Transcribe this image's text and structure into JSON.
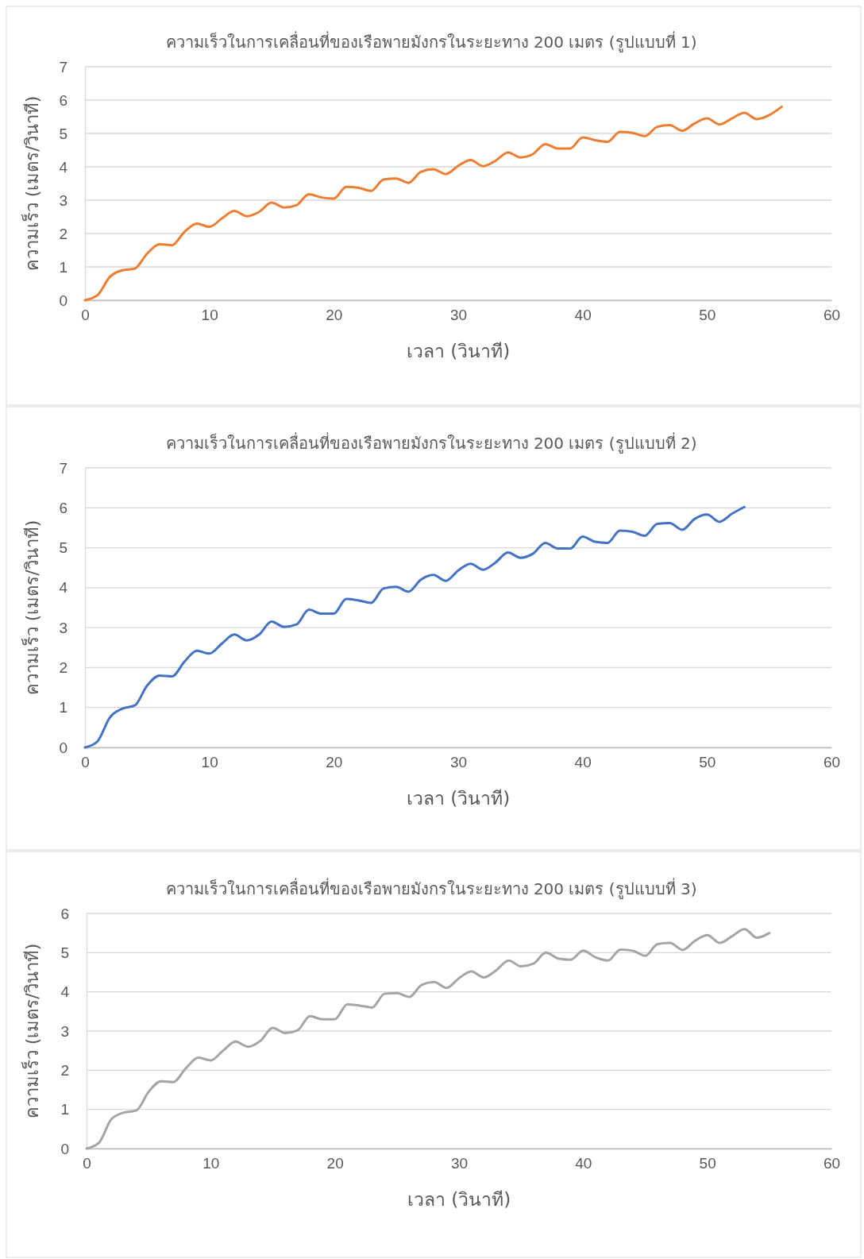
{
  "chart_data": [
    {
      "type": "line",
      "title": "ความเร็วในการเคลื่อนที่ของเรือพายมังกรในระยะทาง 200 เมตร (รูปแบบที่ 1)",
      "xlabel": "เวลา (วินาที)",
      "ylabel": "ความเร็ว (เมตร/วินาที)",
      "xlim": [
        0,
        60
      ],
      "xticks": [
        0,
        10,
        20,
        30,
        40,
        50,
        60
      ],
      "ylim": [
        0,
        7
      ],
      "yticks": [
        0,
        1,
        2,
        3,
        4,
        5,
        6,
        7
      ],
      "grid": "y",
      "x": [
        0,
        1,
        2,
        3,
        4,
        5,
        6,
        7,
        8,
        9,
        10,
        11,
        12,
        13,
        14,
        15,
        16,
        17,
        18,
        19,
        20,
        21,
        22,
        23,
        24,
        25,
        26,
        27,
        28,
        29,
        30,
        31,
        32,
        33,
        34,
        35,
        36,
        37,
        38,
        39,
        40,
        41,
        42,
        43,
        44,
        45,
        46,
        47,
        48,
        49,
        50,
        51,
        52,
        53,
        54,
        55,
        56
      ],
      "series": [
        {
          "color": "#ed7d31",
          "values": [
            0,
            0.15,
            0.7,
            0.9,
            0.95,
            1.4,
            1.68,
            1.65,
            2.05,
            2.3,
            2.2,
            2.45,
            2.68,
            2.52,
            2.65,
            2.93,
            2.78,
            2.85,
            3.18,
            3.08,
            3.05,
            3.4,
            3.37,
            3.28,
            3.62,
            3.65,
            3.52,
            3.85,
            3.93,
            3.78,
            4.03,
            4.2,
            4.02,
            4.18,
            4.43,
            4.28,
            4.38,
            4.68,
            4.55,
            4.55,
            4.88,
            4.8,
            4.75,
            5.05,
            5.02,
            4.92,
            5.2,
            5.25,
            5.08,
            5.3,
            5.45,
            5.27,
            5.45,
            5.62,
            5.43,
            5.55,
            5.8
          ]
        }
      ]
    },
    {
      "type": "line",
      "title": "ความเร็วในการเคลื่อนที่ของเรือพายมังกรในระยะทาง 200 เมตร (รูปแบบที่ 2)",
      "xlabel": "เวลา (วินาที)",
      "ylabel": "ความเร็ว (เมตร/วินาที)",
      "xlim": [
        0,
        60
      ],
      "xticks": [
        0,
        10,
        20,
        30,
        40,
        50,
        60
      ],
      "ylim": [
        0,
        7
      ],
      "yticks": [
        0,
        1,
        2,
        3,
        4,
        5,
        6,
        7
      ],
      "grid": "y",
      "x": [
        0,
        1,
        2,
        3,
        4,
        5,
        6,
        7,
        8,
        9,
        10,
        11,
        12,
        13,
        14,
        15,
        16,
        17,
        18,
        19,
        20,
        21,
        22,
        23,
        24,
        25,
        26,
        27,
        28,
        29,
        30,
        31,
        32,
        33,
        34,
        35,
        36,
        37,
        38,
        39,
        40,
        41,
        42,
        43,
        44,
        45,
        46,
        47,
        48,
        49,
        50,
        51,
        52,
        53
      ],
      "series": [
        {
          "color": "#4472c4",
          "values": [
            0,
            0.15,
            0.75,
            0.97,
            1.05,
            1.55,
            1.8,
            1.78,
            2.15,
            2.42,
            2.35,
            2.6,
            2.83,
            2.68,
            2.83,
            3.15,
            3.02,
            3.08,
            3.45,
            3.35,
            3.35,
            3.72,
            3.68,
            3.62,
            3.98,
            4.02,
            3.9,
            4.2,
            4.32,
            4.17,
            4.43,
            4.6,
            4.45,
            4.63,
            4.88,
            4.75,
            4.85,
            5.12,
            4.98,
            4.98,
            5.28,
            5.15,
            5.12,
            5.43,
            5.4,
            5.3,
            5.6,
            5.62,
            5.45,
            5.72,
            5.83,
            5.65,
            5.85,
            6.02
          ]
        }
      ]
    },
    {
      "type": "line",
      "title": "ความเร็วในการเคลื่อนที่ของเรือพายมังกรในระยะทาง 200 เมตร (รูปแบบที่ 3)",
      "xlabel": "เวลา (วินาที)",
      "ylabel": "ความเร็ว (เมตร/วินาที)",
      "xlim": [
        0,
        60
      ],
      "xticks": [
        0,
        10,
        20,
        30,
        40,
        50,
        60
      ],
      "ylim": [
        0,
        6
      ],
      "yticks": [
        0,
        1,
        2,
        3,
        4,
        5,
        6
      ],
      "grid": "y",
      "x": [
        0,
        1,
        2,
        3,
        4,
        5,
        6,
        7,
        8,
        9,
        10,
        11,
        12,
        13,
        14,
        15,
        16,
        17,
        18,
        19,
        20,
        21,
        22,
        23,
        24,
        25,
        26,
        27,
        28,
        29,
        30,
        31,
        32,
        33,
        34,
        35,
        36,
        37,
        38,
        39,
        40,
        41,
        42,
        43,
        44,
        45,
        46,
        47,
        48,
        49,
        50,
        51,
        52,
        53,
        54,
        55
      ],
      "series": [
        {
          "color": "#a5a5a5",
          "values": [
            0,
            0.15,
            0.75,
            0.92,
            0.97,
            1.45,
            1.72,
            1.7,
            2.05,
            2.32,
            2.25,
            2.5,
            2.73,
            2.6,
            2.75,
            3.08,
            2.95,
            3.02,
            3.38,
            3.3,
            3.3,
            3.68,
            3.65,
            3.6,
            3.95,
            3.97,
            3.87,
            4.18,
            4.25,
            4.1,
            4.35,
            4.52,
            4.37,
            4.55,
            4.8,
            4.65,
            4.72,
            5.0,
            4.85,
            4.82,
            5.05,
            4.88,
            4.8,
            5.08,
            5.05,
            4.92,
            5.22,
            5.25,
            5.07,
            5.3,
            5.45,
            5.25,
            5.42,
            5.6,
            5.38,
            5.5
          ]
        }
      ]
    }
  ]
}
